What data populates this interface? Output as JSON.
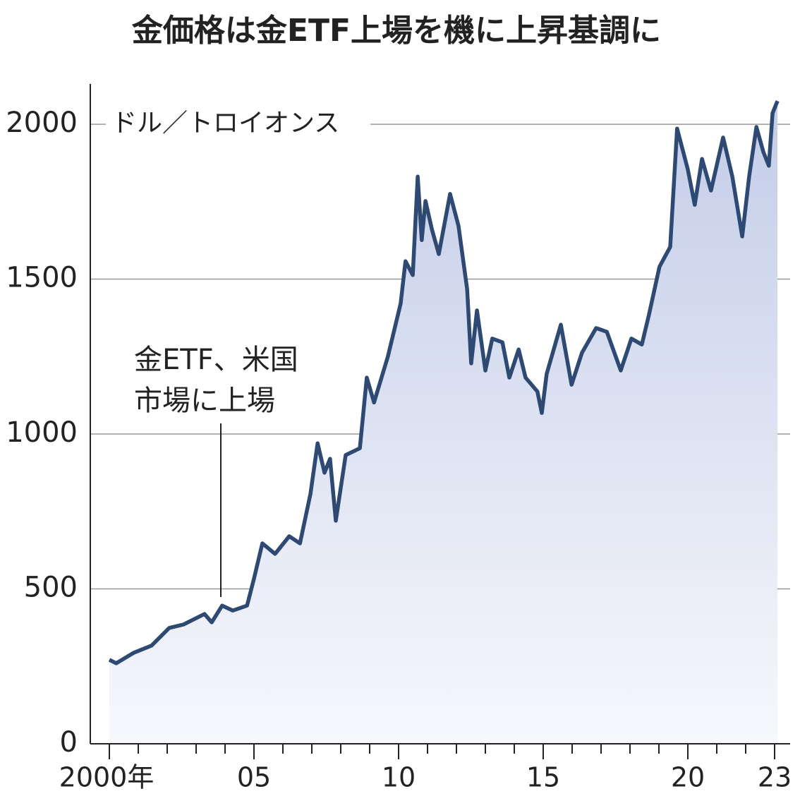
{
  "chart_data": {
    "type": "line",
    "title": "金価格は金ETF上場を機に上昇基調に",
    "y_unit_label": "ドル／トロイオンス",
    "annotation": [
      "金ETF、米国",
      "市場に上場"
    ],
    "x": [
      2000.0,
      2000.24,
      2000.85,
      2001.46,
      2002.07,
      2002.56,
      2003.29,
      2003.54,
      2003.9,
      2004.27,
      2004.76,
      2005.0,
      2005.29,
      2005.73,
      2006.22,
      2006.59,
      2006.95,
      2007.2,
      2007.44,
      2007.63,
      2007.83,
      2008.17,
      2008.66,
      2008.9,
      2009.15,
      2009.63,
      2010.07,
      2010.24,
      2010.49,
      2010.66,
      2010.8,
      2010.93,
      2011.15,
      2011.39,
      2011.78,
      2012.07,
      2012.37,
      2012.51,
      2012.71,
      2013.0,
      2013.24,
      2013.59,
      2013.83,
      2014.15,
      2014.39,
      2014.8,
      2014.95,
      2015.12,
      2015.61,
      2015.98,
      2016.34,
      2016.83,
      2017.2,
      2017.68,
      2018.05,
      2018.41,
      2018.66,
      2019.02,
      2019.39,
      2019.63,
      2020.0,
      2020.24,
      2020.49,
      2020.8,
      2021.22,
      2021.54,
      2021.88,
      2022.12,
      2022.37,
      2022.61,
      2022.8,
      2022.93,
      2023.1
    ],
    "series": [
      {
        "name": "金価格",
        "color": "#2f4a72",
        "values": [
          271,
          260,
          294,
          317,
          374,
          385,
          419,
          392,
          446,
          430,
          446,
          533,
          647,
          613,
          670,
          647,
          806,
          970,
          875,
          920,
          720,
          932,
          954,
          1182,
          1102,
          1250,
          1421,
          1558,
          1513,
          1831,
          1626,
          1752,
          1661,
          1581,
          1775,
          1672,
          1467,
          1228,
          1399,
          1205,
          1308,
          1296,
          1182,
          1273,
          1182,
          1137,
          1068,
          1194,
          1353,
          1159,
          1262,
          1342,
          1330,
          1205,
          1308,
          1289,
          1387,
          1540,
          1604,
          1986,
          1854,
          1740,
          1888,
          1786,
          1957,
          1831,
          1638,
          1831,
          1991,
          1911,
          1866,
          2036,
          2075
        ]
      }
    ],
    "xlim": [
      2000,
      2023.1
    ],
    "xticks": [
      {
        "value": 2000,
        "label": "2000年"
      },
      {
        "value": 2005,
        "label": "05"
      },
      {
        "value": 2010,
        "label": "10"
      },
      {
        "value": 2015,
        "label": "15"
      },
      {
        "value": 2020,
        "label": "20"
      },
      {
        "value": 2023,
        "label": "23"
      }
    ],
    "xminor_ticks": [
      2001,
      2002,
      2003,
      2004,
      2006,
      2007,
      2008,
      2009,
      2011,
      2012,
      2013,
      2014,
      2016,
      2017,
      2018,
      2019,
      2021,
      2022
    ],
    "ylim": [
      0,
      2130
    ],
    "yticks": [
      0,
      500,
      1000,
      1500,
      2000
    ],
    "grid": true
  }
}
